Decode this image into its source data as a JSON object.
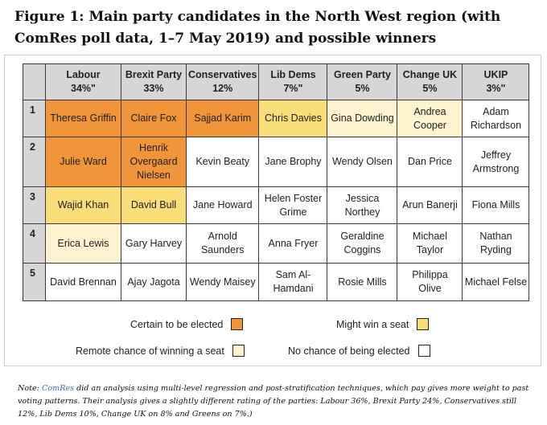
{
  "title": "Figure 1: Main party candidates in the North West region (with ComRes poll data, 1–7 May 2019) and possible winners",
  "table": {
    "headers": [
      {
        "party": "Labour",
        "pct": "34%\""
      },
      {
        "party": "Brexit Party",
        "pct": "33%"
      },
      {
        "party": "Conservatives",
        "pct": "12%"
      },
      {
        "party": "Lib Dems",
        "pct": "7%\""
      },
      {
        "party": "Green Party",
        "pct": "5%"
      },
      {
        "party": "Change UK",
        "pct": "5%"
      },
      {
        "party": "UKIP",
        "pct": "3%\""
      }
    ],
    "rows": [
      {
        "num": "1",
        "cells": [
          {
            "name": "Theresa Griffin",
            "status": "certain"
          },
          {
            "name": "Claire Fox",
            "status": "certain"
          },
          {
            "name": "Sajjad Karim",
            "status": "certain"
          },
          {
            "name": "Chris Davies",
            "status": "might"
          },
          {
            "name": "Gina Dowding",
            "status": "remote"
          },
          {
            "name": "Andrea Cooper",
            "status": "remote"
          },
          {
            "name": "Adam Richardson",
            "status": "none"
          }
        ]
      },
      {
        "num": "2",
        "cells": [
          {
            "name": "Julie Ward",
            "status": "certain"
          },
          {
            "name": "Henrik Overgaard Nielsen",
            "status": "certain"
          },
          {
            "name": "Kevin Beaty",
            "status": "none"
          },
          {
            "name": "Jane Brophy",
            "status": "none"
          },
          {
            "name": "Wendy Olsen",
            "status": "none"
          },
          {
            "name": "Dan Price",
            "status": "none"
          },
          {
            "name": "Jeffrey Armstrong",
            "status": "none"
          }
        ]
      },
      {
        "num": "3",
        "cells": [
          {
            "name": "Wajid Khan",
            "status": "might"
          },
          {
            "name": "David Bull",
            "status": "might"
          },
          {
            "name": "Jane Howard",
            "status": "none"
          },
          {
            "name": "Helen Foster Grime",
            "status": "none"
          },
          {
            "name": "Jessica Northey",
            "status": "none"
          },
          {
            "name": "Arun Banerji",
            "status": "none"
          },
          {
            "name": "Fiona Mills",
            "status": "none"
          }
        ]
      },
      {
        "num": "4",
        "cells": [
          {
            "name": "Erica Lewis",
            "status": "remote"
          },
          {
            "name": "Gary Harvey",
            "status": "none"
          },
          {
            "name": "Arnold Saunders",
            "status": "none"
          },
          {
            "name": "Anna Fryer",
            "status": "none"
          },
          {
            "name": "Geraldine Coggins",
            "status": "none"
          },
          {
            "name": "Michael Taylor",
            "status": "none"
          },
          {
            "name": "Nathan Ryding",
            "status": "none"
          }
        ]
      },
      {
        "num": "5",
        "cells": [
          {
            "name": "David Brennan",
            "status": "none"
          },
          {
            "name": "Ajay Jagota",
            "status": "none"
          },
          {
            "name": "Wendy Maisey",
            "status": "none"
          },
          {
            "name": "Sam Al-Hamdani",
            "status": "none"
          },
          {
            "name": "Rosie Mills",
            "status": "none"
          },
          {
            "name": "Philippa Olive",
            "status": "none"
          },
          {
            "name": "Michael Felse",
            "status": "none"
          }
        ]
      }
    ]
  },
  "legend": {
    "certain": "Certain to be elected",
    "might": "Might win a seat",
    "remote": "Remote chance of winning a seat",
    "none": "No chance of being elected"
  },
  "colors": {
    "certain": "#f0953a",
    "might": "#f8dd78",
    "remote": "#fdf3cf",
    "none": "#ffffff",
    "header": "#d6d6d6",
    "link": "#3a6bbf"
  },
  "note": {
    "lead": "Note: ",
    "link": "ComRes",
    "text": " did an analysis using multi-level regression and post-stratification techniques, which pay gives more weight to past voting patterns. Their analysis gives a slightly different rating of the parties: Labour 36%, Brexit Party 24%, Conservatives still 12%, Lib Dems 10%, Change UK on 8% and Greens on 7%.)"
  }
}
